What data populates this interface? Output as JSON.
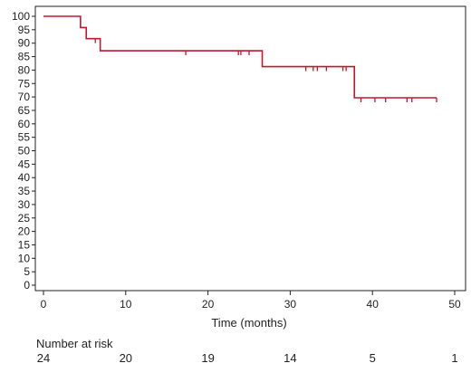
{
  "chart_data": {
    "type": "line",
    "xlabel": "Time (months)",
    "ylabel": "",
    "xlim": [
      0,
      50
    ],
    "ylim": [
      0,
      100
    ],
    "x_ticks": [
      0,
      10,
      20,
      30,
      40,
      50
    ],
    "y_ticks": [
      0,
      5,
      10,
      15,
      20,
      25,
      30,
      35,
      40,
      45,
      50,
      55,
      60,
      65,
      70,
      75,
      80,
      85,
      90,
      95,
      100
    ],
    "line_color": "#c0192c",
    "series": [
      {
        "steps": [
          [
            0,
            100
          ],
          [
            4.5,
            95.8
          ],
          [
            5.2,
            91.7
          ],
          [
            6.9,
            87.2
          ],
          [
            26.6,
            81.3
          ],
          [
            37.8,
            69.7
          ],
          [
            47.8,
            69.7
          ]
        ],
        "censored": [
          [
            6.3,
            91.7
          ],
          [
            17.3,
            87.2
          ],
          [
            23.7,
            87.2
          ],
          [
            24.0,
            87.2
          ],
          [
            25.0,
            87.2
          ],
          [
            31.9,
            81.3
          ],
          [
            32.8,
            81.3
          ],
          [
            33.3,
            81.3
          ],
          [
            34.4,
            81.3
          ],
          [
            36.4,
            81.3
          ],
          [
            36.8,
            81.3
          ],
          [
            38.6,
            69.7
          ],
          [
            40.3,
            69.7
          ],
          [
            41.6,
            69.7
          ],
          [
            44.2,
            69.7
          ],
          [
            44.8,
            69.7
          ],
          [
            47.8,
            69.7
          ]
        ]
      }
    ],
    "risk_table": {
      "title": "Number at risk",
      "times": [
        0,
        10,
        20,
        30,
        40,
        50
      ],
      "values": [
        "24",
        "20",
        "19",
        "14",
        "5",
        "1"
      ]
    }
  }
}
